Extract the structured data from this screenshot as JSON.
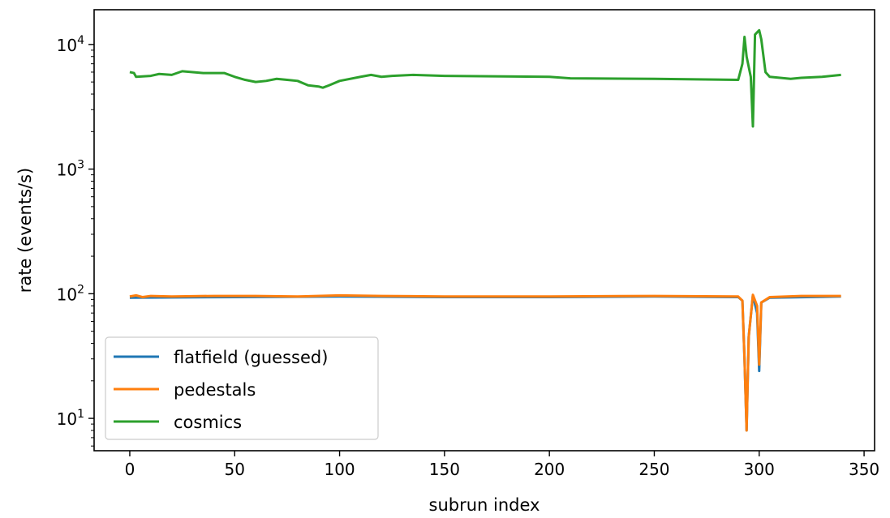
{
  "chart_data": {
    "type": "line",
    "title": "",
    "xlabel": "subrun index",
    "ylabel": "rate (events/s)",
    "xlim": [
      -17,
      355
    ],
    "ylim": [
      5.5,
      19000
    ],
    "yscale": "log",
    "grid": false,
    "legend_placement": "bottom-left",
    "x_ticks": [
      {
        "value": 0,
        "label": "0"
      },
      {
        "value": 50,
        "label": "50"
      },
      {
        "value": 100,
        "label": "100"
      },
      {
        "value": 150,
        "label": "150"
      },
      {
        "value": 200,
        "label": "200"
      },
      {
        "value": 250,
        "label": "250"
      },
      {
        "value": 300,
        "label": "300"
      },
      {
        "value": 350,
        "label": "350"
      }
    ],
    "y_ticks": [
      {
        "value": 10,
        "base": "10",
        "exp": "1"
      },
      {
        "value": 100,
        "base": "10",
        "exp": "2"
      },
      {
        "value": 1000,
        "base": "10",
        "exp": "3"
      },
      {
        "value": 10000,
        "base": "10",
        "exp": "4"
      }
    ],
    "series": [
      {
        "name": "flatfield (guessed)",
        "color": "#1f77b4",
        "points": [
          [
            0,
            93
          ],
          [
            50,
            94
          ],
          [
            100,
            95
          ],
          [
            150,
            94
          ],
          [
            200,
            94
          ],
          [
            250,
            95
          ],
          [
            290,
            94
          ],
          [
            292,
            88
          ],
          [
            293,
            30
          ],
          [
            294,
            8
          ],
          [
            295,
            45
          ],
          [
            297,
            97
          ],
          [
            299,
            70
          ],
          [
            300,
            24
          ],
          [
            301,
            85
          ],
          [
            305,
            93
          ],
          [
            339,
            95
          ]
        ]
      },
      {
        "name": "pedestals",
        "color": "#ff7f0e",
        "points": [
          [
            0,
            95
          ],
          [
            3,
            97
          ],
          [
            6,
            94
          ],
          [
            10,
            96
          ],
          [
            20,
            95
          ],
          [
            40,
            96
          ],
          [
            60,
            96
          ],
          [
            80,
            95
          ],
          [
            100,
            97
          ],
          [
            120,
            96
          ],
          [
            150,
            95
          ],
          [
            200,
            95
          ],
          [
            250,
            96
          ],
          [
            290,
            95
          ],
          [
            292,
            88
          ],
          [
            293,
            30
          ],
          [
            294,
            8
          ],
          [
            295,
            45
          ],
          [
            297,
            98
          ],
          [
            299,
            80
          ],
          [
            300,
            27
          ],
          [
            301,
            85
          ],
          [
            305,
            94
          ],
          [
            320,
            96
          ],
          [
            339,
            96
          ]
        ]
      },
      {
        "name": "cosmics",
        "color": "#2ca02c",
        "points": [
          [
            0,
            6000
          ],
          [
            2,
            5900
          ],
          [
            3,
            5500
          ],
          [
            10,
            5600
          ],
          [
            14,
            5800
          ],
          [
            20,
            5700
          ],
          [
            25,
            6100
          ],
          [
            35,
            5900
          ],
          [
            45,
            5900
          ],
          [
            50,
            5500
          ],
          [
            55,
            5200
          ],
          [
            60,
            5000
          ],
          [
            65,
            5100
          ],
          [
            70,
            5300
          ],
          [
            75,
            5200
          ],
          [
            80,
            5100
          ],
          [
            85,
            4700
          ],
          [
            90,
            4600
          ],
          [
            92,
            4500
          ],
          [
            95,
            4700
          ],
          [
            100,
            5100
          ],
          [
            110,
            5500
          ],
          [
            115,
            5700
          ],
          [
            120,
            5500
          ],
          [
            125,
            5600
          ],
          [
            135,
            5700
          ],
          [
            150,
            5600
          ],
          [
            200,
            5500
          ],
          [
            210,
            5350
          ],
          [
            250,
            5300
          ],
          [
            290,
            5200
          ],
          [
            292,
            7000
          ],
          [
            293,
            11500
          ],
          [
            294,
            8000
          ],
          [
            296,
            5500
          ],
          [
            297,
            2200
          ],
          [
            298,
            12000
          ],
          [
            299,
            12500
          ],
          [
            300,
            13000
          ],
          [
            301,
            11000
          ],
          [
            303,
            6000
          ],
          [
            305,
            5500
          ],
          [
            315,
            5300
          ],
          [
            320,
            5400
          ],
          [
            330,
            5500
          ],
          [
            339,
            5700
          ]
        ]
      }
    ]
  }
}
